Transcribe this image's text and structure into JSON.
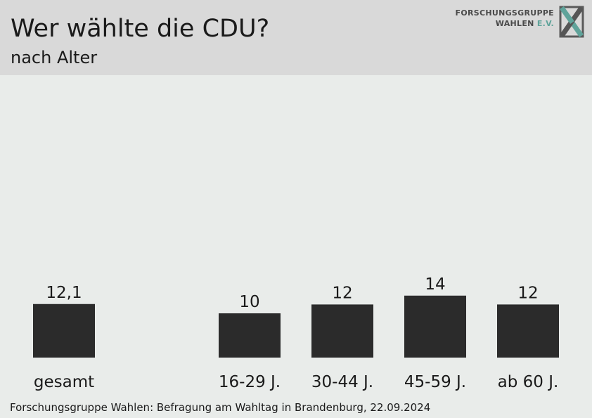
{
  "header": {
    "title": "Wer wählte die CDU?",
    "subtitle": "nach Alter"
  },
  "logo": {
    "line1": "FORSCHUNGSGRUPPE",
    "line2_main": "WAHLEN",
    "line2_accent": "E.V.",
    "accent_color": "#5fa39a"
  },
  "chart_data": {
    "type": "bar",
    "categories": [
      "gesamt",
      "16-29 J.",
      "30-44 J.",
      "45-59 J.",
      "ab 60 J."
    ],
    "values": [
      12.1,
      10,
      12,
      14,
      12
    ],
    "value_labels": [
      "12,1",
      "10",
      "12",
      "14",
      "12"
    ],
    "title": "Wer wählte die CDU?",
    "subtitle": "nach Alter",
    "xlabel": "",
    "ylabel": "",
    "grid": false,
    "bar_color": "#2b2b2b"
  },
  "footer": {
    "source": "Forschungsgruppe Wahlen: Befragung am Wahltag in Brandenburg, 22.09.2024"
  }
}
